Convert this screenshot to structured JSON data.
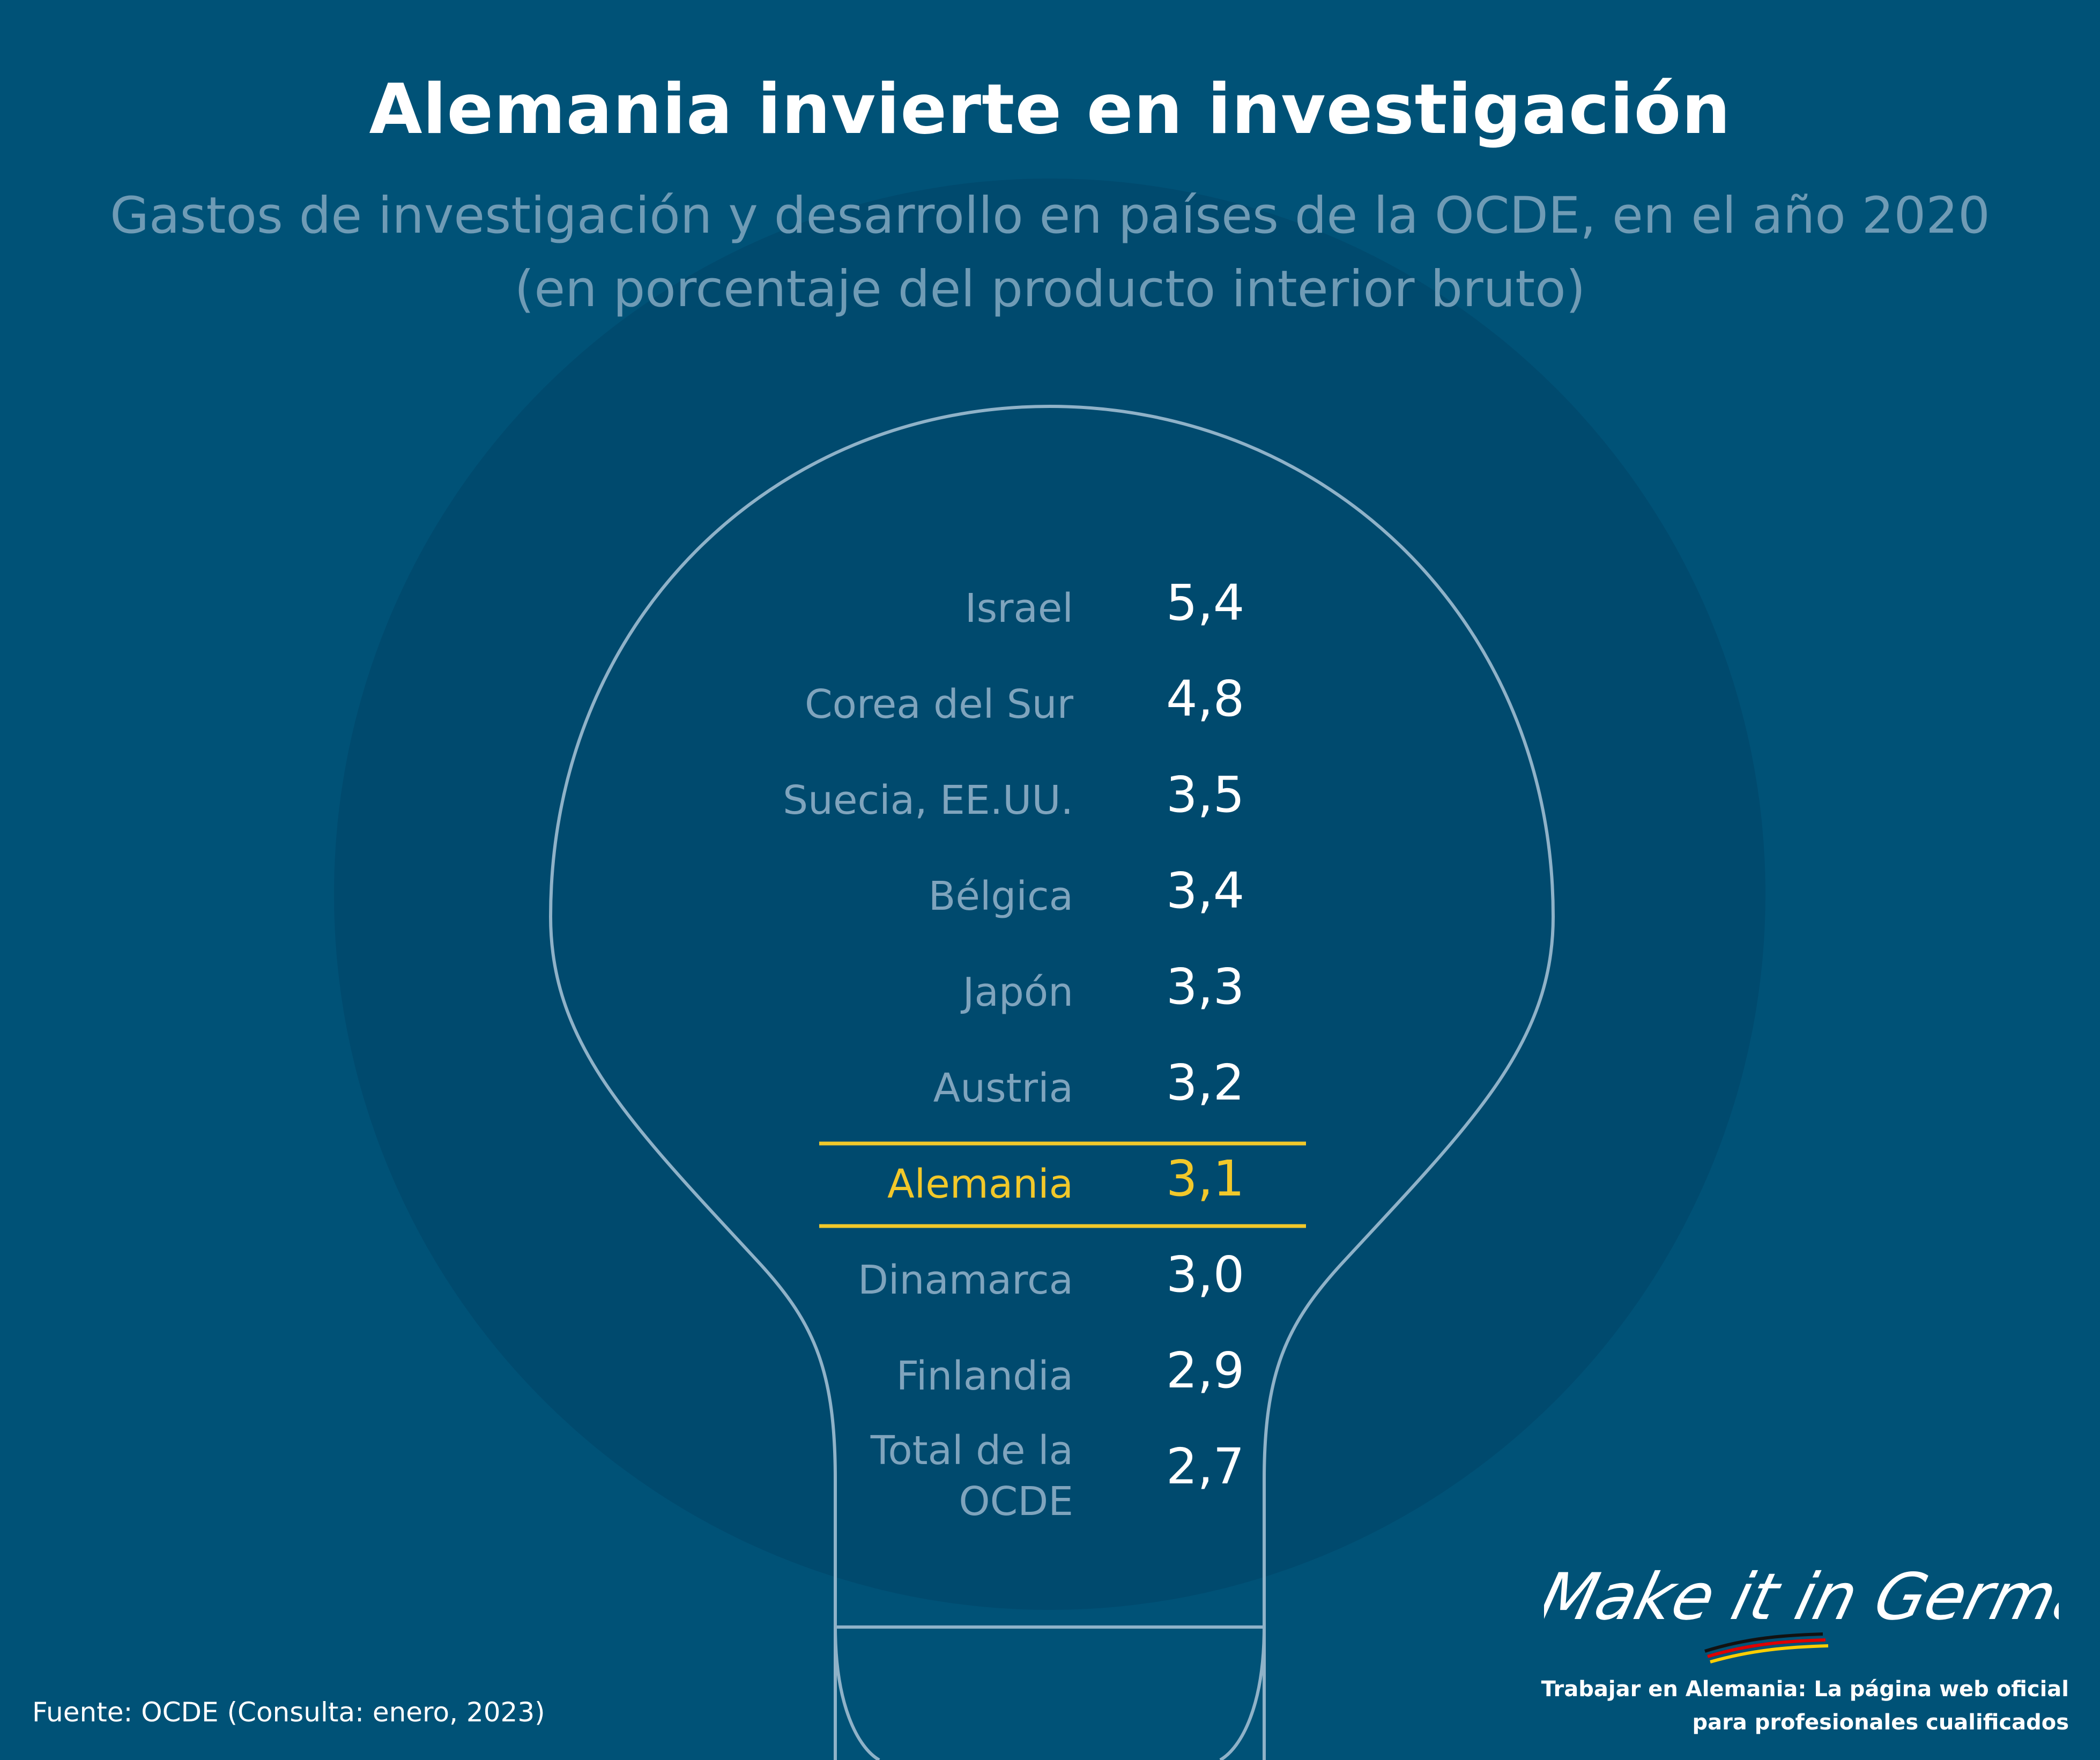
{
  "title": "Alemania invierte en investigación",
  "subtitle_line1": "Gastos de investigación y desarrollo en países de la OCDE, en el año 2020",
  "subtitle_line2": "(en porcentaje del producto interior bruto)",
  "source": "Fuente: OCDE (Consulta: enero, 2023)",
  "brand": {
    "logo_text": "Make it in Germany",
    "tagline_line1": "Trabajar en Alemania: La página web oficial",
    "tagline_line2": "para profesionales cualificados"
  },
  "colors": {
    "background": "#005277",
    "circle": "#004a6e",
    "outline": "#8fb2c8",
    "label": "#7fa4bd",
    "value": "#ffffff",
    "highlight": "#f2c82a"
  },
  "chart_data": {
    "type": "table",
    "title": "Alemania invierte en investigación",
    "subtitle": "Gastos de investigación y desarrollo en países de la OCDE, en el año 2020 (en porcentaje del producto interior bruto)",
    "rows": [
      {
        "label": [
          "Israel"
        ],
        "value": "5,4",
        "numeric": 5.4,
        "highlight": false
      },
      {
        "label": [
          "Corea del Sur"
        ],
        "value": "4,8",
        "numeric": 4.8,
        "highlight": false
      },
      {
        "label": [
          "Suecia, EE.UU."
        ],
        "value": "3,5",
        "numeric": 3.5,
        "highlight": false
      },
      {
        "label": [
          "Bélgica"
        ],
        "value": "3,4",
        "numeric": 3.4,
        "highlight": false
      },
      {
        "label": [
          "Japón"
        ],
        "value": "3,3",
        "numeric": 3.3,
        "highlight": false
      },
      {
        "label": [
          "Austria"
        ],
        "value": "3,2",
        "numeric": 3.2,
        "highlight": false
      },
      {
        "label": [
          "Alemania"
        ],
        "value": "3,1",
        "numeric": 3.1,
        "highlight": true
      },
      {
        "label": [
          "Dinamarca"
        ],
        "value": "3,0",
        "numeric": 3.0,
        "highlight": false
      },
      {
        "label": [
          "Finlandia"
        ],
        "value": "2,9",
        "numeric": 2.9,
        "highlight": false
      },
      {
        "label": [
          "Total de la",
          "OCDE"
        ],
        "value": "2,7",
        "numeric": 2.7,
        "highlight": false
      }
    ]
  }
}
